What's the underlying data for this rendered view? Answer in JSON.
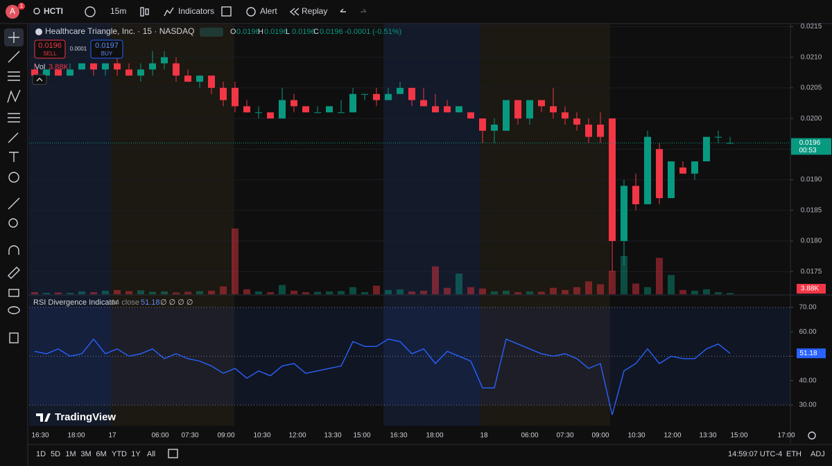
{
  "toolbar": {
    "avatar": "A",
    "badge": "1",
    "symbol": "HCTI",
    "interval": "15m",
    "indicators": "Indicators",
    "alert": "Alert",
    "replay": "Replay"
  },
  "legend": {
    "name": "Healthcare Triangle, Inc. · 15 · NASDAQ",
    "o": "O",
    "o_value": "0.0196",
    "h": "H",
    "h_value": "0.0196",
    "l": "L",
    "l_value": "0.0196",
    "c": "C",
    "c_value": "0.0196",
    "change": "-0.0001",
    "change_pct": "(-0.51%)",
    "sell_price": "0.0196",
    "sell": "SELL",
    "spread": "0.0001",
    "buy_price": "0.0197",
    "buy": "BUY",
    "vol": "Vol"
  },
  "rsi_legend": {
    "name": "RSI Divergence Indicator",
    "params": "14 close",
    "extras": "∅ ∅ ∅ ∅"
  },
  "logo": "TradingView",
  "bottom": {
    "ranges": [
      "1D",
      "5D",
      "1M",
      "3M",
      "6M",
      "YTD",
      "1Y",
      "All"
    ],
    "clock": "14:59:07 UTC-4",
    "eth": "ETH",
    "adj": "ADJ"
  },
  "chart_data": {
    "type": "candlestick",
    "open": [
      0.0208,
      0.0207,
      0.0208,
      0.0207,
      0.0208,
      0.0209,
      0.0208,
      0.0209,
      0.0208,
      0.0207,
      0.0208,
      0.0209,
      0.0209,
      0.0207,
      0.0206,
      0.0207,
      0.0205,
      0.0205,
      0.0202,
      0.0201,
      0.0201,
      0.02,
      0.0203,
      0.0202,
      0.0201,
      0.0201,
      0.0201,
      0.0201,
      0.0204,
      0.0204,
      0.0203,
      0.0204,
      0.0205,
      0.0203,
      0.0202,
      0.0202,
      0.0201,
      0.0201,
      0.02,
      0.0198,
      0.0198,
      0.0203,
      0.02,
      0.0203,
      0.0202,
      0.0201,
      0.02,
      0.0199,
      0.0199,
      0.02,
      0.018,
      0.0189,
      0.0186,
      0.0195,
      0.0187,
      0.0192,
      0.0191,
      0.0193,
      0.0197,
      0.0196
    ],
    "high": [
      0.0209,
      0.0208,
      0.0208,
      0.0209,
      0.0209,
      0.0209,
      0.0209,
      0.021,
      0.0209,
      0.0209,
      0.0211,
      0.0211,
      0.021,
      0.0208,
      0.0207,
      0.0207,
      0.0206,
      0.0206,
      0.0203,
      0.0202,
      0.0201,
      0.0205,
      0.0204,
      0.0202,
      0.0202,
      0.0202,
      0.0203,
      0.0205,
      0.0204,
      0.0205,
      0.0205,
      0.0206,
      0.0205,
      0.0205,
      0.0204,
      0.0203,
      0.0202,
      0.0201,
      0.02,
      0.02,
      0.0203,
      0.0203,
      0.0203,
      0.0203,
      0.0205,
      0.0202,
      0.0201,
      0.02,
      0.0201,
      0.02,
      0.019,
      0.0191,
      0.0198,
      0.0196,
      0.0193,
      0.0193,
      0.0193,
      0.0197,
      0.0198,
      0.0197
    ],
    "low": [
      0.0207,
      0.0207,
      0.0207,
      0.0207,
      0.0208,
      0.0207,
      0.0207,
      0.0207,
      0.0207,
      0.0206,
      0.0207,
      0.0208,
      0.0206,
      0.0206,
      0.0205,
      0.0204,
      0.0202,
      0.0201,
      0.0201,
      0.02,
      0.02,
      0.02,
      0.0201,
      0.0201,
      0.0201,
      0.0201,
      0.0201,
      0.0201,
      0.0203,
      0.0202,
      0.0203,
      0.0204,
      0.0202,
      0.0202,
      0.0201,
      0.0201,
      0.0201,
      0.02,
      0.0196,
      0.0196,
      0.0198,
      0.0199,
      0.0199,
      0.0201,
      0.02,
      0.0199,
      0.0198,
      0.0196,
      0.0196,
      0.0175,
      0.0176,
      0.0185,
      0.0186,
      0.0186,
      0.0187,
      0.0191,
      0.019,
      0.0193,
      0.0196,
      0.0196
    ],
    "close": [
      0.0207,
      0.0208,
      0.0207,
      0.0208,
      0.0209,
      0.0208,
      0.0209,
      0.0208,
      0.0207,
      0.0208,
      0.0209,
      0.021,
      0.0207,
      0.0206,
      0.0207,
      0.0205,
      0.0203,
      0.0202,
      0.0201,
      0.0201,
      0.02,
      0.0203,
      0.0202,
      0.0201,
      0.0201,
      0.0202,
      0.0201,
      0.0204,
      0.0204,
      0.0203,
      0.0204,
      0.0205,
      0.0203,
      0.0202,
      0.0201,
      0.0201,
      0.0202,
      0.02,
      0.0198,
      0.0199,
      0.0203,
      0.02,
      0.0203,
      0.0202,
      0.0201,
      0.02,
      0.0199,
      0.0197,
      0.0197,
      0.018,
      0.0189,
      0.0186,
      0.0197,
      0.0187,
      0.0193,
      0.0191,
      0.0193,
      0.0197,
      0.0197,
      0.0196
    ],
    "volume": {
      "values": [
        6000,
        4000,
        5000,
        4000,
        8000,
        6000,
        10000,
        12000,
        9000,
        11000,
        7000,
        8000,
        5000,
        7000,
        9000,
        10000,
        22000,
        184000,
        14000,
        8000,
        6000,
        26000,
        10000,
        6000,
        7000,
        8000,
        9000,
        20000,
        6000,
        24000,
        12000,
        14000,
        8000,
        10000,
        78000,
        18000,
        58000,
        20000,
        16000,
        8000,
        10000,
        6000,
        8000,
        7000,
        18000,
        12000,
        20000,
        36000,
        28000,
        66000,
        107000,
        30000,
        20000,
        102000,
        54000,
        12000,
        10000,
        14000,
        6000,
        3880
      ],
      "label": "3.88K"
    },
    "rsi": {
      "values": [
        52,
        51,
        53,
        50,
        51,
        57,
        51,
        53,
        50,
        51,
        53,
        49,
        51,
        49,
        48,
        46,
        43,
        45,
        41,
        44,
        42,
        46,
        47,
        43,
        44,
        45,
        46,
        56,
        54,
        54,
        57,
        56,
        51,
        53,
        47,
        52,
        50,
        48,
        37,
        37,
        57,
        55,
        53,
        51,
        50,
        51,
        49,
        45,
        47,
        26,
        44,
        47,
        53,
        47,
        50,
        49,
        49,
        53,
        55,
        51.18
      ],
      "levels": [
        30,
        50,
        70
      ]
    },
    "up_color": "#089981",
    "down_color": "#f23645",
    "rsi_color": "#2962ff",
    "ylim": [
      0.01713,
      0.02155
    ],
    "yticks": [
      0.0175,
      {
        "value": 0.018,
        "label": "0.0180"
      },
      0.0185,
      {
        "value": 0.019,
        "label": "0.0190"
      },
      0.0195,
      {
        "value": 0.02,
        "label": "0.0200"
      },
      0.0205,
      {
        "value": 0.021,
        "label": "0.0210"
      },
      0.0215
    ],
    "rsi_ylim": [
      21.5,
      74.5
    ],
    "rsi_yticks": [
      {
        "value": 30,
        "label": "30.00"
      },
      {
        "value": 40,
        "label": "40.00"
      },
      {
        "value": 50,
        "label": "50.00"
      },
      {
        "value": 60,
        "label": "60.00"
      },
      {
        "value": 70,
        "label": "70.00"
      }
    ],
    "price_label": "0.0196",
    "countdown": "00:53",
    "x_labels": [
      "16:30",
      "18:00",
      "17",
      "06:00",
      "07:30",
      "09:00",
      "10:30",
      "12:00",
      "13:30",
      "15:00",
      "16:30",
      "18:00",
      "18",
      "06:00",
      "07:30",
      "09:00",
      "10:30",
      "12:00",
      "13:30",
      "15:00",
      "17:00"
    ],
    "grid": true
  }
}
